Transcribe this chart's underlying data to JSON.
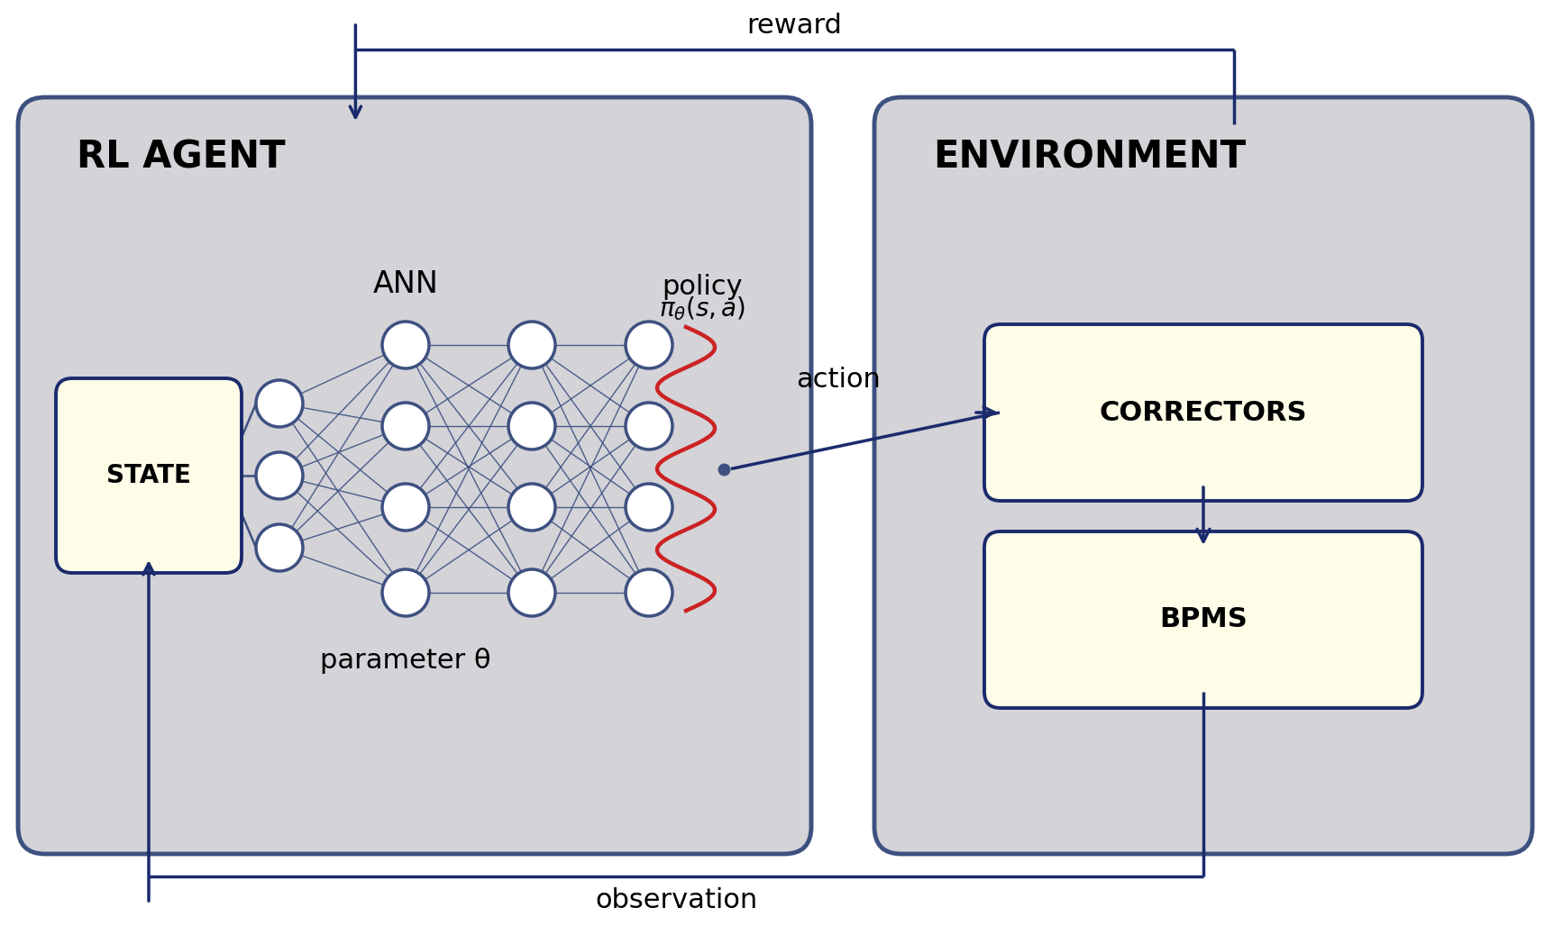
{
  "bg_color": "#ffffff",
  "panel_color": "#d3d3d8",
  "panel_border_color": "#3d5080",
  "box_fill_color": "#fefde8",
  "box_border_color": "#1a2a6c",
  "node_border_color": "#1a2a6c",
  "arrow_color": "#1a2a6c",
  "wavy_color": "#cc2222",
  "text_color": "#000000",
  "agent_label": "RL AGENT",
  "env_label": "ENVIRONMENT",
  "ann_label": "ANN",
  "policy_label": "policy",
  "policy_formula": "$\\pi_{\\theta}(s,a)$",
  "param_label": "parameter θ",
  "state_label": "STATE",
  "correctors_label": "CORRECTORS",
  "bpms_label": "BPMS",
  "action_label": "action",
  "reward_label": "reward",
  "observation_label": "observation",
  "figw": 17.14,
  "figh": 10.38,
  "dpi": 100
}
